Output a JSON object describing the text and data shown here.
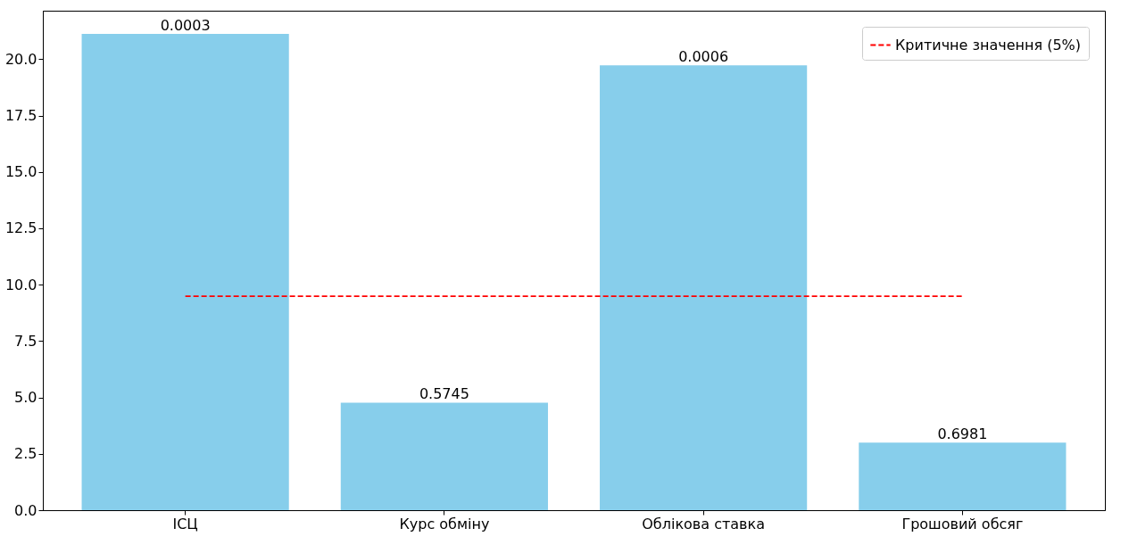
{
  "chart_data": {
    "type": "bar",
    "categories": [
      "ІСЦ",
      "Курс обміну",
      "Облікова ставка",
      "Грошовий обсяг"
    ],
    "series": [
      {
        "color": "#87ceeb",
        "values": [
          21.12,
          4.77,
          19.73,
          3.0
        ]
      },
      {
        "type": "line",
        "name": "Критичне значення (5%)",
        "color": "#ff0000",
        "values": [
          9.49,
          9.49,
          9.49,
          9.49
        ],
        "line_style": "dashed",
        "marker": "none"
      }
    ],
    "annotations": [
      {
        "text": "0.0003",
        "x": "ІСЦ",
        "y": 21.12
      },
      {
        "text": "0.5745",
        "x": "Курс обміну",
        "y": 4.77
      },
      {
        "text": "0.0006",
        "x": "Облікова ставка",
        "y": 19.73
      },
      {
        "text": "0.6981",
        "x": "Грошовий обсяг",
        "y": 3.0
      }
    ],
    "ylim": [
      0,
      22.15
    ],
    "yticks": [
      {
        "value": 0,
        "label": "0.0"
      },
      2.5,
      {
        "value": 5,
        "label": "5.0"
      },
      7.5,
      {
        "value": 10,
        "label": "10.0"
      },
      12.5,
      {
        "value": 15,
        "label": "15.0"
      },
      17.5,
      {
        "value": 20,
        "label": "20.0"
      }
    ],
    "grid": false,
    "legend": "top right"
  }
}
